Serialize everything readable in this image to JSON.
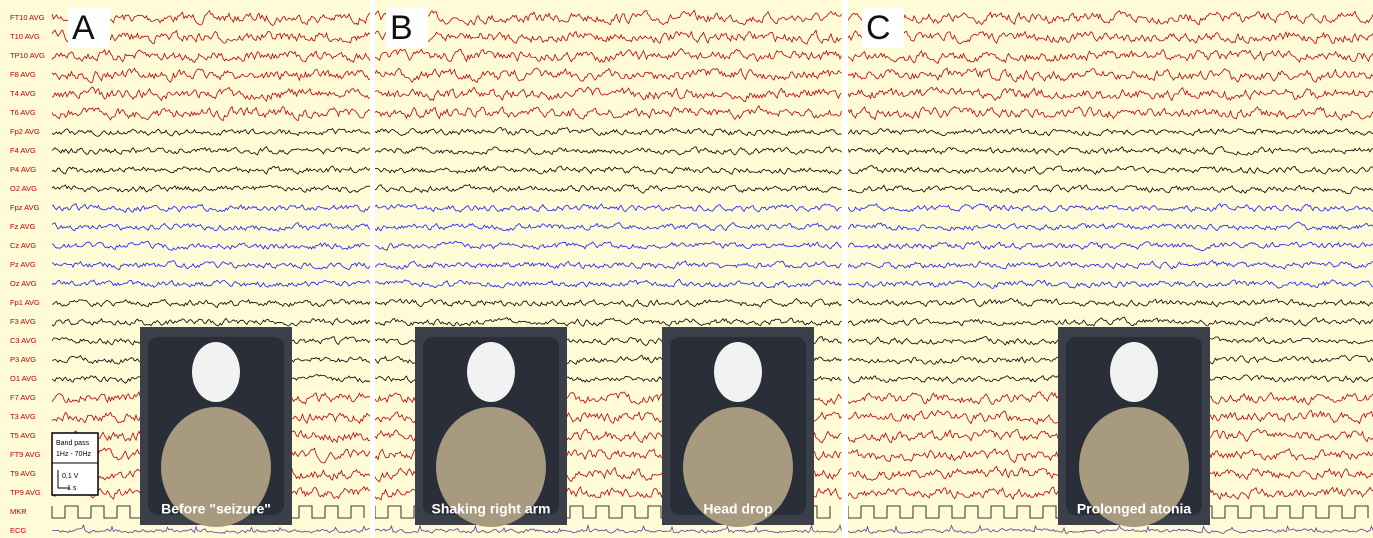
{
  "channels": [
    "FT10 AVG",
    "T10 AVG",
    "TP10 AVG",
    "F8 AVG",
    "T4 AVG",
    "T6 AVG",
    "Fp2 AVG",
    "F4 AVG",
    "P4 AVG",
    "O2 AVG",
    "Fpz AVG",
    "Fz AVG",
    "Cz AVG",
    "Pz AVG",
    "Oz AVG",
    "Fp1 AVG",
    "F3 AVG",
    "C3 AVG",
    "P3 AVG",
    "O1 AVG",
    "F7 AVG",
    "T3 AVG",
    "T5 AVG",
    "FT9 AVG",
    "T9 AVG",
    "TP9 AVG",
    "MKR",
    "ECG"
  ],
  "panels": [
    {
      "letter": "A",
      "photos": [
        {
          "caption": "Before \"seizure\""
        }
      ]
    },
    {
      "letter": "B",
      "photos": [
        {
          "caption": "Shaking right arm"
        },
        {
          "caption": "Head drop"
        }
      ]
    },
    {
      "letter": "C",
      "photos": [
        {
          "caption": "Prolonged atonia"
        }
      ]
    }
  ],
  "scale": {
    "filter_title": "Band pass",
    "filter_range": "1Hz - 70Hz",
    "amplitude": "0,1 V",
    "time": "1 s"
  }
}
